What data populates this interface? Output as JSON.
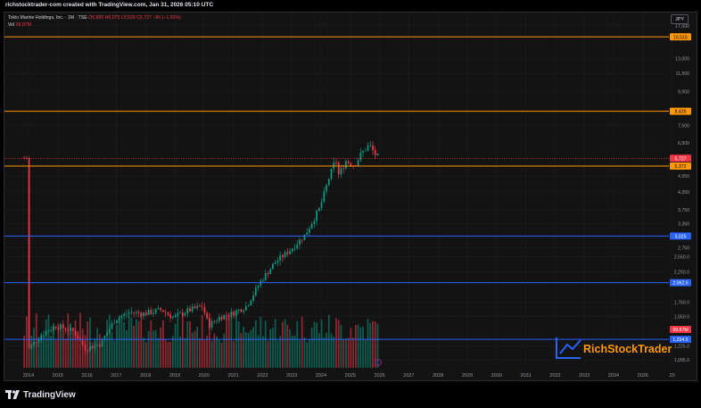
{
  "header": {
    "creator_text": "richstocktrader-com created with TradingView.com, Jan 31, 2026 05:10 UTC",
    "currency": "JPY",
    "footer_brand": "TradingView",
    "watermark": "RichStockTrader"
  },
  "legend": {
    "symbol": "Tokio Marine Holdings, Inc. · 1M · TSE",
    "open": "O5,895",
    "high": "H6,075",
    "low": "L5,529",
    "close": "C5,727",
    "change": "−90 (−1.55%)",
    "vol_label": "Vol",
    "vol_value": "99.87M"
  },
  "chart_data": {
    "type": "candlestick",
    "scale": "log",
    "title": "Tokio Marine Holdings, Inc. · 1M · TSE",
    "y_ticks": [
      "17,000",
      "13,000",
      "11,500",
      "9,900",
      "7,500",
      "6,500",
      "4,950",
      "4,350",
      "3,750",
      "3,350",
      "2,750",
      "2,550.0",
      "2,250.0",
      "1,760.0",
      "1,560.0",
      "1,225.0",
      "1,095.0"
    ],
    "x_ticks": [
      "2014",
      "2015",
      "2016",
      "2017",
      "2018",
      "2019",
      "2020",
      "2021",
      "2022",
      "2023",
      "2024",
      "2025",
      "2026",
      "2027",
      "2028",
      "2029",
      "2030",
      "2031",
      "2032",
      "2033",
      "2034",
      "2035",
      "20"
    ],
    "horizontal_levels": [
      {
        "value": 15515,
        "label": "15,515",
        "color": "#ff9800"
      },
      {
        "value": 8426,
        "label": "8,426",
        "color": "#ff9800"
      },
      {
        "value": 5372,
        "label": "5,372",
        "color": "#ff9800"
      },
      {
        "value": 3025,
        "label": "3,025",
        "color": "#2962ff"
      },
      {
        "value": 2062.5,
        "label": "2,062.5",
        "color": "#2962ff"
      },
      {
        "value": 1294.5,
        "label": "1,294.5",
        "color": "#2962ff"
      }
    ],
    "last_price": {
      "value": 5727,
      "label": "5,727",
      "color": "#f23645"
    },
    "volume_label": {
      "label": "99.87M",
      "color": "#f23645"
    },
    "price_anchors": [
      {
        "year": 2014.0,
        "price": 1180
      },
      {
        "year": 2014.5,
        "price": 1350
      },
      {
        "year": 2015.0,
        "price": 1450
      },
      {
        "year": 2015.6,
        "price": 1380
      },
      {
        "year": 2016.0,
        "price": 1200
      },
      {
        "year": 2016.5,
        "price": 1250
      },
      {
        "year": 2017.0,
        "price": 1520
      },
      {
        "year": 2017.5,
        "price": 1620
      },
      {
        "year": 2018.0,
        "price": 1600
      },
      {
        "year": 2018.6,
        "price": 1650
      },
      {
        "year": 2019.0,
        "price": 1550
      },
      {
        "year": 2019.5,
        "price": 1640
      },
      {
        "year": 2020.0,
        "price": 1700
      },
      {
        "year": 2020.2,
        "price": 1450
      },
      {
        "year": 2020.6,
        "price": 1560
      },
      {
        "year": 2021.0,
        "price": 1600
      },
      {
        "year": 2021.5,
        "price": 1700
      },
      {
        "year": 2022.0,
        "price": 2100
      },
      {
        "year": 2022.5,
        "price": 2450
      },
      {
        "year": 2023.0,
        "price": 2700
      },
      {
        "year": 2023.5,
        "price": 3050
      },
      {
        "year": 2024.0,
        "price": 3800
      },
      {
        "year": 2024.3,
        "price": 4800
      },
      {
        "year": 2024.55,
        "price": 5700
      },
      {
        "year": 2024.65,
        "price": 5000
      },
      {
        "year": 2024.9,
        "price": 5600
      },
      {
        "year": 2025.2,
        "price": 5400
      },
      {
        "year": 2025.4,
        "price": 5900
      },
      {
        "year": 2025.7,
        "price": 6400
      },
      {
        "year": 2025.9,
        "price": 5900
      },
      {
        "year": 2026.08,
        "price": 5727
      }
    ]
  },
  "colors": {
    "up": "#089981",
    "down": "#f23645",
    "orange": "#ff9800",
    "blue": "#2962ff",
    "grid": "#1e1e1e"
  }
}
